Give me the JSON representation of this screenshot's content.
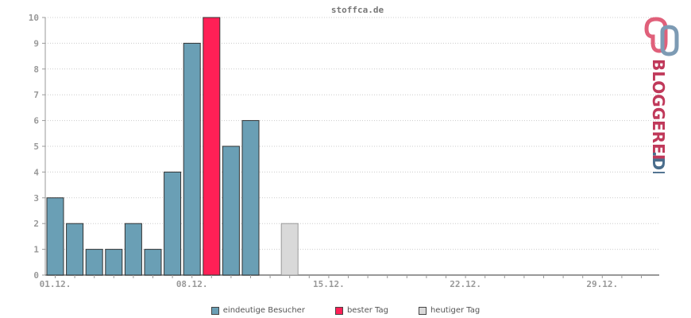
{
  "chart_data": {
    "type": "bar",
    "title": "stoffca.de",
    "categories": [
      "01.12.",
      "02.12.",
      "03.12.",
      "04.12.",
      "05.12.",
      "06.12.",
      "07.12.",
      "08.12.",
      "09.12.",
      "10.12.",
      "11.12.",
      "12.12.",
      "13.12.",
      "14.12.",
      "15.12.",
      "16.12.",
      "17.12.",
      "18.12.",
      "19.12.",
      "20.12.",
      "21.12.",
      "22.12.",
      "23.12.",
      "24.12.",
      "25.12.",
      "26.12.",
      "27.12.",
      "28.12.",
      "29.12.",
      "30.12.",
      "31.12."
    ],
    "values": [
      3,
      2,
      1,
      1,
      2,
      1,
      4,
      9,
      10,
      5,
      6,
      null,
      2,
      null,
      null,
      null,
      null,
      null,
      null,
      null,
      null,
      null,
      null,
      null,
      null,
      null,
      null,
      null,
      null,
      null,
      null
    ],
    "x_tick_labels": [
      "01.12.",
      "08.12.",
      "15.12.",
      "22.12.",
      "29.12."
    ],
    "y_ticks": [
      0,
      1,
      2,
      3,
      4,
      5,
      6,
      7,
      8,
      9,
      10
    ],
    "ylim": [
      0,
      10
    ],
    "best_day": "09.12.",
    "today": "13.12.",
    "grid": true,
    "legend_position": "bottom",
    "colors": {
      "regular": "#6a9fb5",
      "best": "#ff2056",
      "today": "#d9d9d9",
      "outline": "#333333"
    }
  },
  "legend": [
    {
      "label": "eindeutige Besucher",
      "color": "#6a9fb5"
    },
    {
      "label": "bester Tag",
      "color": "#ff2056"
    },
    {
      "label": "heutiger Tag",
      "color": "#d9d9d9"
    }
  ],
  "logo": {
    "text_main": "BLOGGEREI",
    "text_suffix": ".DE",
    "colors": {
      "main": "#c0395a",
      "suffix": "#4a6d8c"
    }
  }
}
